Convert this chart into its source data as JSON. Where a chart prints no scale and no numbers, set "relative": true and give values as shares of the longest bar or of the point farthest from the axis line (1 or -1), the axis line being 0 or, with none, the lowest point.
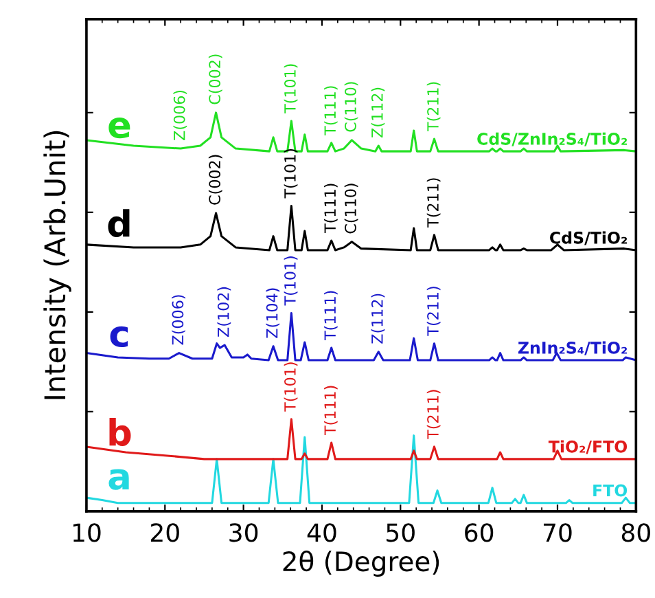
{
  "chart_data": {
    "type": "line",
    "relative": true,
    "xlabel": "2θ (Degree)",
    "ylabel": "Intensity (Arb.Unit)",
    "xlim": [
      10,
      80
    ],
    "xticks": [
      10,
      20,
      30,
      40,
      50,
      60,
      70,
      80
    ],
    "tick_labels": "x",
    "grid": false,
    "legend": "right",
    "series": [
      {
        "name": "FTO",
        "color": "#22d8e0",
        "x": [
          10,
          12,
          14,
          26.0,
          26.6,
          27.2,
          33.2,
          33.8,
          34.4,
          37.2,
          37.8,
          38.4,
          51.1,
          51.7,
          52.3,
          54.2,
          54.7,
          55.2,
          61.2,
          61.7,
          62.2,
          64.2,
          64.6,
          65.0,
          65.3,
          65.7,
          66.1,
          71.1,
          71.5,
          71.9,
          78.2,
          78.7,
          79.2,
          80
        ],
        "values": [
          0.034,
          0.028,
          0.021,
          0.021,
          0.131,
          0.021,
          0.021,
          0.131,
          0.021,
          0.021,
          0.186,
          0.021,
          0.021,
          0.19,
          0.021,
          0.021,
          0.052,
          0.021,
          0.021,
          0.059,
          0.021,
          0.021,
          0.031,
          0.021,
          0.021,
          0.041,
          0.021,
          0.021,
          0.028,
          0.021,
          0.021,
          0.034,
          0.021,
          0.021
        ]
      },
      {
        "name": "TiO₂/FTO",
        "color": "#e01a1a",
        "x": [
          10,
          15,
          20,
          25,
          35.6,
          36.1,
          36.6,
          37.4,
          37.8,
          38.2,
          40.7,
          41.2,
          41.7,
          51.3,
          51.7,
          52.1,
          53.8,
          54.3,
          54.8,
          62.3,
          62.7,
          63.1,
          69.5,
          70.0,
          70.5,
          80
        ],
        "values": [
          0.162,
          0.148,
          0.14,
          0.131,
          0.131,
          0.231,
          0.131,
          0.131,
          0.145,
          0.131,
          0.131,
          0.172,
          0.131,
          0.131,
          0.152,
          0.131,
          0.131,
          0.162,
          0.131,
          0.131,
          0.148,
          0.131,
          0.131,
          0.152,
          0.131,
          0.131
        ]
      },
      {
        "name": "ZnIn₂S₄/TiO₂",
        "color": "#1a1acc",
        "x": [
          10,
          14,
          18,
          20.5,
          21.8,
          23.5,
          26.0,
          26.6,
          27.0,
          27.6,
          28.5,
          30.0,
          30.5,
          31.0,
          33.2,
          33.8,
          34.4,
          35.6,
          36.1,
          36.6,
          37.3,
          37.8,
          38.3,
          40.7,
          41.2,
          41.7,
          46.6,
          47.2,
          47.8,
          51.2,
          51.7,
          52.2,
          53.8,
          54.3,
          54.8,
          61.3,
          61.7,
          62.1,
          62.3,
          62.7,
          63.1,
          65.3,
          65.7,
          66.1,
          69.4,
          69.9,
          70.4,
          78.3,
          78.7,
          80
        ],
        "values": [
          0.397,
          0.386,
          0.383,
          0.383,
          0.397,
          0.383,
          0.383,
          0.421,
          0.41,
          0.417,
          0.386,
          0.386,
          0.393,
          0.383,
          0.379,
          0.414,
          0.379,
          0.379,
          0.497,
          0.379,
          0.379,
          0.424,
          0.379,
          0.379,
          0.41,
          0.379,
          0.379,
          0.4,
          0.379,
          0.379,
          0.434,
          0.379,
          0.379,
          0.421,
          0.379,
          0.379,
          0.386,
          0.379,
          0.379,
          0.397,
          0.379,
          0.379,
          0.386,
          0.379,
          0.379,
          0.397,
          0.379,
          0.379,
          0.386,
          0.379
        ]
      },
      {
        "name": "CdS/TiO₂",
        "color": "#000000",
        "x": [
          10,
          16,
          22,
          24.5,
          25.8,
          26.5,
          27.2,
          29,
          33.3,
          33.8,
          34.3,
          35.6,
          36.1,
          36.6,
          37.4,
          37.8,
          38.2,
          40.7,
          41.2,
          41.7,
          42.8,
          43.8,
          45,
          51.3,
          51.7,
          52.1,
          53.8,
          54.3,
          54.8,
          61.3,
          61.7,
          62.1,
          62.3,
          62.7,
          63.1,
          65.3,
          65.7,
          66.1,
          69.2,
          70,
          70.8,
          78.5,
          80
        ],
        "values": [
          0.669,
          0.662,
          0.662,
          0.669,
          0.69,
          0.748,
          0.69,
          0.662,
          0.655,
          0.69,
          0.655,
          0.655,
          0.766,
          0.655,
          0.655,
          0.703,
          0.655,
          0.655,
          0.679,
          0.655,
          0.662,
          0.676,
          0.659,
          0.655,
          0.71,
          0.655,
          0.655,
          0.693,
          0.655,
          0.655,
          0.662,
          0.655,
          0.655,
          0.669,
          0.655,
          0.655,
          0.659,
          0.655,
          0.655,
          0.669,
          0.655,
          0.659,
          0.655
        ]
      },
      {
        "name": "CdS/ZnIn₂S₄/TiO₂",
        "color": "#22e022",
        "x": [
          10,
          16,
          22,
          24.5,
          25.8,
          26.5,
          27.2,
          29,
          33.3,
          33.8,
          34.3,
          35.6,
          36.1,
          36.6,
          37.4,
          37.8,
          38.2,
          40.7,
          41.2,
          41.7,
          42.8,
          43.8,
          45,
          46.8,
          47.2,
          47.6,
          51.3,
          51.7,
          52.1,
          53.8,
          54.3,
          54.8,
          61.3,
          61.7,
          62.1,
          62.3,
          62.7,
          63.1,
          65.3,
          65.7,
          66.1,
          69.6,
          70,
          70.4,
          78.5,
          80
        ],
        "values": [
          0.931,
          0.917,
          0.91,
          0.917,
          0.938,
          1.0,
          0.938,
          0.91,
          0.903,
          0.938,
          0.903,
          0.903,
          0.979,
          0.903,
          0.903,
          0.945,
          0.903,
          0.903,
          0.924,
          0.903,
          0.91,
          0.931,
          0.91,
          0.903,
          0.917,
          0.903,
          0.903,
          0.955,
          0.903,
          0.903,
          0.934,
          0.903,
          0.903,
          0.91,
          0.903,
          0.903,
          0.91,
          0.903,
          0.903,
          0.91,
          0.903,
          0.903,
          0.917,
          0.903,
          0.906,
          0.903
        ]
      }
    ],
    "annotations": [
      "a",
      "b",
      "c",
      "d",
      "e",
      {
        "text": "T(101)",
        "x": 36.1,
        "y": 0.231
      },
      {
        "text": "T(111)",
        "x": 41.2,
        "y": 0.172
      },
      {
        "text": "T(211)",
        "x": 54.3,
        "y": 0.162
      },
      {
        "text": "Z(006)",
        "x": 21.8,
        "y": 0.397
      },
      {
        "text": "Z(102)",
        "x": 27.6,
        "y": 0.417
      },
      {
        "text": "Z(104)",
        "x": 33.8,
        "y": 0.414
      },
      {
        "text": "T(101)",
        "x": 36.1,
        "y": 0.497
      },
      {
        "text": "T(111)",
        "x": 41.2,
        "y": 0.41
      },
      {
        "text": "Z(112)",
        "x": 47.2,
        "y": 0.4
      },
      {
        "text": "T(211)",
        "x": 54.3,
        "y": 0.421
      },
      {
        "text": "C(002)",
        "x": 26.5,
        "y": 0.748
      },
      {
        "text": "T(101)",
        "x": 36.1,
        "y": 0.766
      },
      {
        "text": "T(111)",
        "x": 41.2,
        "y": 0.679
      },
      {
        "text": "C(110)",
        "x": 43.8,
        "y": 0.676
      },
      {
        "text": "T(211)",
        "x": 54.3,
        "y": 0.693
      },
      {
        "text": "Z(006)",
        "x": 22,
        "y": 0.91
      },
      {
        "text": "C(002)",
        "x": 26.5,
        "y": 1.0
      },
      {
        "text": "T(101)",
        "x": 36.1,
        "y": 0.979
      },
      {
        "text": "T(111)",
        "x": 41.2,
        "y": 0.924
      },
      {
        "text": "C(110)",
        "x": 43.8,
        "y": 0.931
      },
      {
        "text": "Z(112)",
        "x": 47.2,
        "y": 0.917
      },
      {
        "text": "T(211)",
        "x": 54.3,
        "y": 0.934
      }
    ]
  }
}
